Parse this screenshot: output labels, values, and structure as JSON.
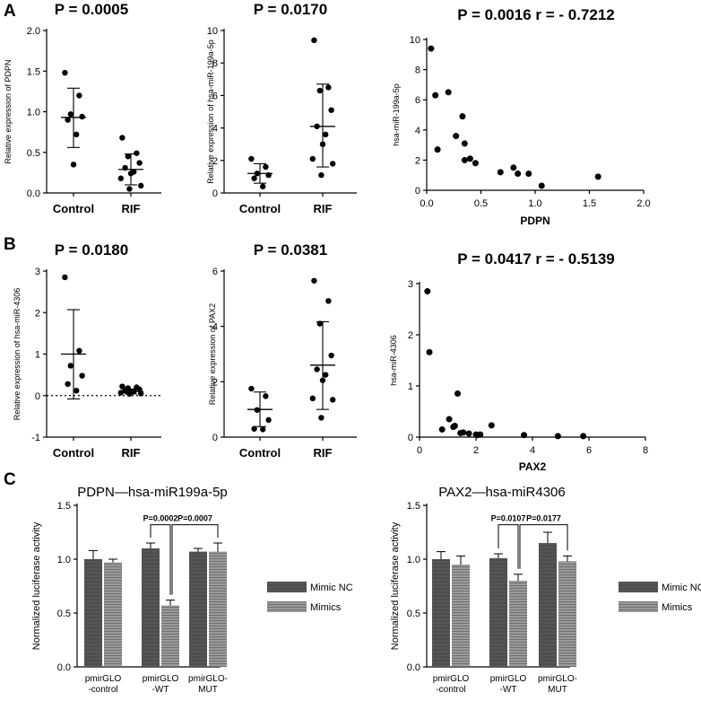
{
  "panel_letters": [
    "A",
    "B",
    "C"
  ],
  "colors": {
    "nc": "#525252",
    "mimics": "#8a8a8a",
    "axis": "#000000",
    "point": "#000000"
  },
  "chart_data": [
    {
      "id": "A1",
      "type": "scatter-dot",
      "title": "P = 0.0005",
      "ylabel": "Relative expression of  PDPN",
      "categories": [
        "Control",
        "RIF"
      ],
      "ylim": [
        0,
        2.0
      ],
      "yticks": [
        "0.0",
        "0.5",
        "1.0",
        "1.5",
        "2.0"
      ],
      "ytick_values": [
        0,
        0.5,
        1.0,
        1.5,
        2.0
      ],
      "groups": [
        {
          "name": "Control",
          "mean": 0.93,
          "lower": 0.56,
          "upper": 1.29,
          "points": [
            1.48,
            1.2,
            0.97,
            0.94,
            0.9,
            0.72,
            0.35
          ]
        },
        {
          "name": "RIF",
          "mean": 0.29,
          "lower": 0.1,
          "upper": 0.48,
          "points": [
            0.68,
            0.49,
            0.45,
            0.37,
            0.31,
            0.26,
            0.24,
            0.18,
            0.09,
            0.05
          ]
        }
      ]
    },
    {
      "id": "A2",
      "type": "scatter-dot",
      "title": "P = 0.0170",
      "ylabel": "Relative expression of hsa-miR-199a-5p",
      "categories": [
        "Control",
        "RIF"
      ],
      "ylim": [
        0,
        10
      ],
      "yticks": [
        "0",
        "2",
        "4",
        "6",
        "8",
        "10"
      ],
      "ytick_values": [
        0,
        2,
        4,
        6,
        8,
        10
      ],
      "groups": [
        {
          "name": "Control",
          "mean": 1.2,
          "lower": 0.6,
          "upper": 1.8,
          "points": [
            2.1,
            1.6,
            1.2,
            1.1,
            0.9,
            0.4
          ]
        },
        {
          "name": "RIF",
          "mean": 4.1,
          "lower": 1.6,
          "upper": 6.7,
          "points": [
            9.4,
            6.5,
            6.3,
            5.1,
            4.1,
            3.6,
            3.0,
            2.1,
            1.8,
            1.1
          ]
        }
      ]
    },
    {
      "id": "A3",
      "type": "scatter",
      "title": "P = 0.0016 r = - 0.7212",
      "xlabel": "PDPN",
      "ylabel": "hsa-miR-199a-5p",
      "xlim": [
        0,
        2.0
      ],
      "ylim": [
        0,
        10
      ],
      "xticks": [
        "0.0",
        "0.5",
        "1.0",
        "1.5",
        "2.0"
      ],
      "xtick_values": [
        0,
        0.5,
        1.0,
        1.5,
        2.0
      ],
      "yticks": [
        "0",
        "2",
        "4",
        "6",
        "8",
        "10"
      ],
      "ytick_values": [
        0,
        2,
        4,
        6,
        8,
        10
      ],
      "x": [
        0.04,
        0.08,
        0.1,
        0.2,
        0.27,
        0.33,
        0.35,
        0.35,
        0.4,
        0.45,
        0.68,
        0.8,
        0.84,
        0.94,
        1.06,
        1.58
      ],
      "y": [
        9.4,
        6.3,
        2.7,
        6.5,
        3.6,
        4.9,
        3.1,
        2.0,
        2.1,
        1.8,
        1.2,
        1.5,
        1.1,
        1.1,
        0.3,
        0.9
      ]
    },
    {
      "id": "B1",
      "type": "scatter-dot",
      "title": "P = 0.0180",
      "ylabel": "Relative expression of hsa-miR-4306",
      "categories": [
        "Control",
        "RIF"
      ],
      "ylim": [
        -1,
        3
      ],
      "yticks": [
        "-1",
        "0",
        "1",
        "2",
        "3"
      ],
      "ytick_values": [
        -1,
        0,
        1,
        2,
        3
      ],
      "zero_line": true,
      "groups": [
        {
          "name": "Control",
          "mean": 1.0,
          "lower": -0.08,
          "upper": 2.07,
          "points": [
            2.85,
            1.08,
            0.72,
            0.48,
            0.28,
            0.12
          ]
        },
        {
          "name": "RIF",
          "mean": 0.1,
          "lower": 0.04,
          "upper": 0.16,
          "points": [
            0.22,
            0.2,
            0.18,
            0.15,
            0.12,
            0.1,
            0.08,
            0.07,
            0.05,
            0.04
          ]
        }
      ]
    },
    {
      "id": "B2",
      "type": "scatter-dot",
      "title": "P = 0.0381",
      "ylabel": "Relative expression of PAX2",
      "categories": [
        "Control",
        "RIF"
      ],
      "ylim": [
        0,
        6
      ],
      "yticks": [
        "0",
        "2",
        "4",
        "6"
      ],
      "ytick_values": [
        0,
        2,
        4,
        6
      ],
      "groups": [
        {
          "name": "Control",
          "mean": 1.0,
          "lower": 0.38,
          "upper": 1.63,
          "points": [
            1.75,
            1.48,
            0.98,
            0.62,
            0.3,
            0.28
          ]
        },
        {
          "name": "RIF",
          "mean": 2.6,
          "lower": 1.0,
          "upper": 4.17,
          "points": [
            5.65,
            4.92,
            4.1,
            2.95,
            2.45,
            2.25,
            2.05,
            1.4,
            1.35,
            0.7
          ]
        }
      ]
    },
    {
      "id": "B3",
      "type": "scatter",
      "title": "P = 0.0417 r = - 0.5139",
      "xlabel": "PAX2",
      "ylabel": "hsa-miR-4306",
      "xlim": [
        0,
        8
      ],
      "ylim": [
        0,
        3
      ],
      "xticks": [
        "0",
        "2",
        "4",
        "6",
        "8"
      ],
      "xtick_values": [
        0,
        2,
        4,
        6,
        8
      ],
      "yticks": [
        "0",
        "1",
        "2",
        "3"
      ],
      "ytick_values": [
        0,
        1,
        2,
        3
      ],
      "x": [
        0.28,
        0.35,
        0.8,
        1.05,
        1.2,
        1.25,
        1.35,
        1.45,
        1.55,
        1.75,
        2.0,
        2.05,
        2.15,
        2.55,
        3.7,
        4.9,
        5.8
      ],
      "y": [
        2.85,
        1.66,
        0.15,
        0.35,
        0.2,
        0.22,
        0.85,
        0.08,
        0.09,
        0.07,
        0.05,
        0.04,
        0.05,
        0.23,
        0.04,
        0.02,
        0.02
      ]
    },
    {
      "id": "C1",
      "type": "bar",
      "title": "PDPN—hsa-miR199a-5p",
      "ylabel": "Normalized luciferase activity",
      "categories": [
        "pmirGLO\n-control",
        "pmirGLO\n-WT",
        "pmirGLO-\nMUT"
      ],
      "ylim": [
        0,
        1.5
      ],
      "yticks": [
        "0.0",
        "0.5",
        "1.0",
        "1.5"
      ],
      "ytick_values": [
        0,
        0.5,
        1.0,
        1.5
      ],
      "series": [
        {
          "name": "Mimic NC",
          "values": [
            1.0,
            1.1,
            1.07
          ],
          "errors": [
            0.08,
            0.05,
            0.03
          ]
        },
        {
          "name": "Mimics",
          "values": [
            0.97,
            0.57,
            1.07
          ],
          "errors": [
            0.03,
            0.05,
            0.08
          ]
        }
      ],
      "comparisons": [
        {
          "label": "P=0.0002",
          "from": [
            1,
            0
          ],
          "to": [
            1,
            1
          ]
        },
        {
          "label": "P=0.0007",
          "from": [
            1,
            1
          ],
          "to": [
            2,
            1
          ]
        }
      ],
      "legend": [
        "Mimic NC",
        "Mimics"
      ]
    },
    {
      "id": "C2",
      "type": "bar",
      "title": "PAX2—hsa-miR4306",
      "ylabel": "Normalized luciferase activity",
      "categories": [
        "pmirGLO\n-control",
        "pmirGLO\n-WT",
        "pmirGLO-\nMUT"
      ],
      "ylim": [
        0,
        1.5
      ],
      "yticks": [
        "0.0",
        "0.5",
        "1.0",
        "1.5"
      ],
      "ytick_values": [
        0,
        0.5,
        1.0,
        1.5
      ],
      "series": [
        {
          "name": "Mimic NC",
          "values": [
            1.0,
            1.01,
            1.15
          ],
          "errors": [
            0.07,
            0.04,
            0.1
          ]
        },
        {
          "name": "Mimics",
          "values": [
            0.95,
            0.8,
            0.98
          ],
          "errors": [
            0.08,
            0.06,
            0.05
          ]
        }
      ],
      "comparisons": [
        {
          "label": "P=0.0107",
          "from": [
            1,
            0
          ],
          "to": [
            1,
            1
          ]
        },
        {
          "label": "P=0.0177",
          "from": [
            1,
            1
          ],
          "to": [
            2,
            1
          ]
        }
      ],
      "legend": [
        "Mimic NC",
        "Mimics"
      ]
    }
  ]
}
